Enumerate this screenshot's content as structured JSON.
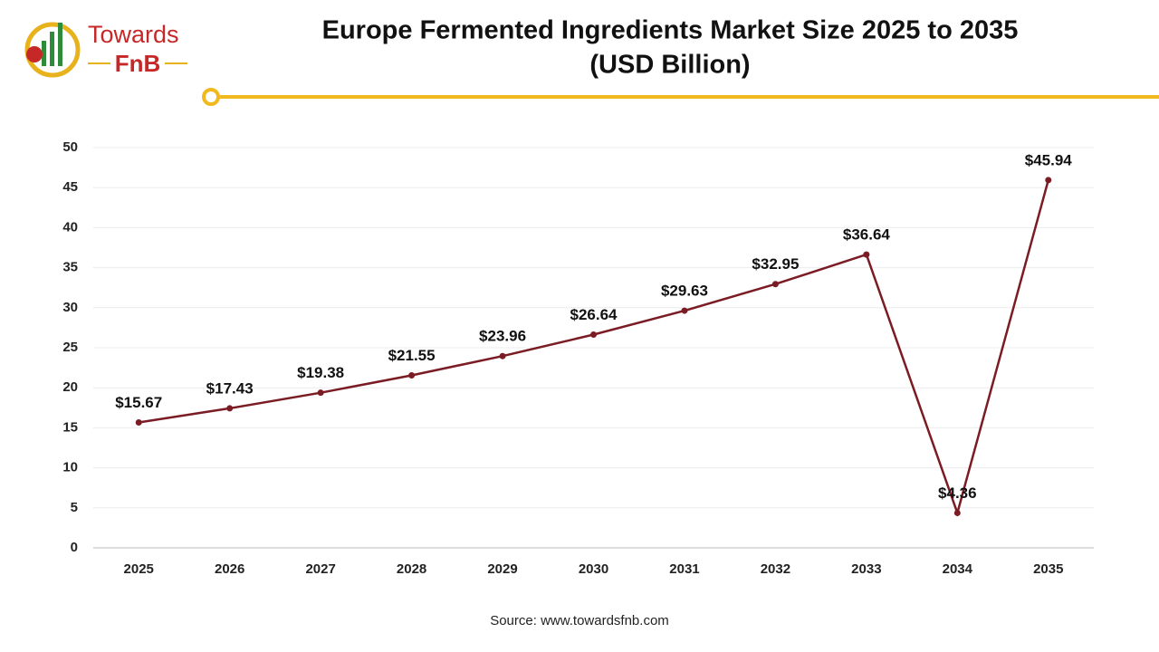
{
  "logo": {
    "line1": "Towards",
    "line2": "FnB"
  },
  "chart_data": {
    "type": "line",
    "title": "Europe Fermented Ingredients Market Size 2025 to 2035",
    "subtitle": "(USD Billion)",
    "source": "Source: www.towardsfnb.com",
    "categories": [
      "2025",
      "2026",
      "2027",
      "2028",
      "2029",
      "2030",
      "2031",
      "2032",
      "2033",
      "2034",
      "2035"
    ],
    "series": [
      {
        "name": "Market Size",
        "color": "#7b1c24",
        "values": [
          15.67,
          17.43,
          19.38,
          21.55,
          23.96,
          26.64,
          29.63,
          32.95,
          36.64,
          4.36,
          45.94
        ],
        "value_labels": [
          "$15.67",
          "$17.43",
          "$19.38",
          "$21.55",
          "$23.96",
          "$26.64",
          "$29.63",
          "$32.95",
          "$36.64",
          "$4.36",
          "$45.94"
        ]
      }
    ],
    "ylim": [
      0,
      50
    ],
    "yticks": [
      0,
      5,
      10,
      15,
      20,
      25,
      30,
      35,
      40,
      45,
      50
    ],
    "grid": true
  }
}
